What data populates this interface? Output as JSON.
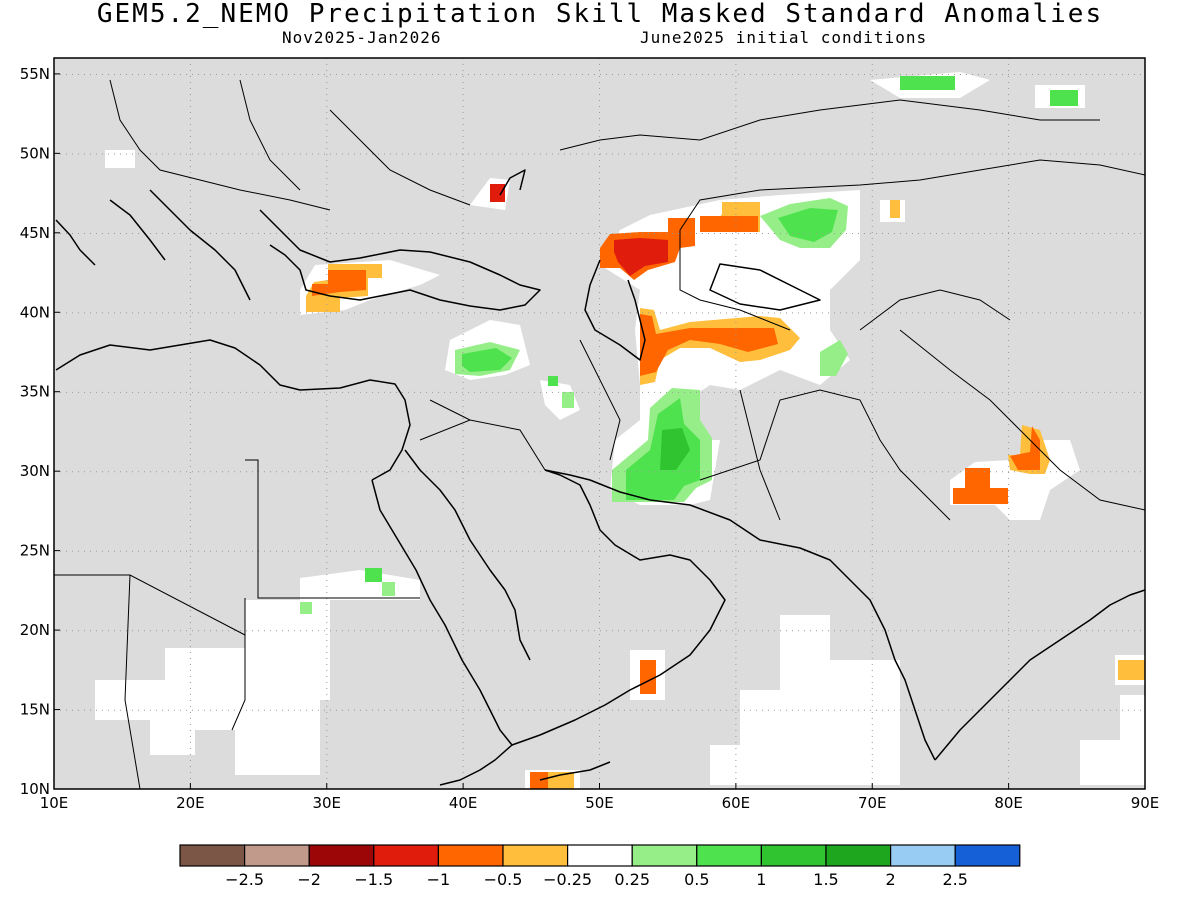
{
  "header": {
    "title": "GEM5.2_NEMO Precipitation Skill Masked Standard Anomalies",
    "period": "Nov2025-Jan2026",
    "init": "June2025 initial conditions"
  },
  "map": {
    "lon_range": [
      10,
      90
    ],
    "lat_range": [
      10,
      56
    ],
    "x_ticks": [
      "10E",
      "20E",
      "30E",
      "40E",
      "50E",
      "60E",
      "70E",
      "80E",
      "90E"
    ],
    "y_ticks": [
      "55N",
      "50N",
      "45N",
      "40N",
      "35N",
      "30N",
      "25N",
      "20N",
      "15N",
      "10N"
    ],
    "ocean_color": "#dcdcdc",
    "grid": "dotted"
  },
  "colorbar": {
    "colors": [
      "#7b5545",
      "#c29a8c",
      "#9c0606",
      "#e01c0c",
      "#ff6600",
      "#ffbf3c",
      "#ffffff",
      "#96ee88",
      "#4fe24f",
      "#31c431",
      "#1ea61e",
      "#99ccf3",
      "#1560d6"
    ],
    "labels": [
      "-2.5",
      "-2",
      "-1.5",
      "-1",
      "-0.5",
      "-0.25",
      "0.25",
      "0.5",
      "1",
      "1.5",
      "2",
      "2.5"
    ]
  },
  "anomaly_legend": {
    "neutral": "#ffffff",
    "dry_weak": "#ffbf3c",
    "dry_mod": "#ff6600",
    "dry_strong": "#e01c0c",
    "dry_vstrong": "#9c0606",
    "wet_weak": "#96ee88",
    "wet_mod": "#4fe24f",
    "wet_strong": "#31c431"
  }
}
